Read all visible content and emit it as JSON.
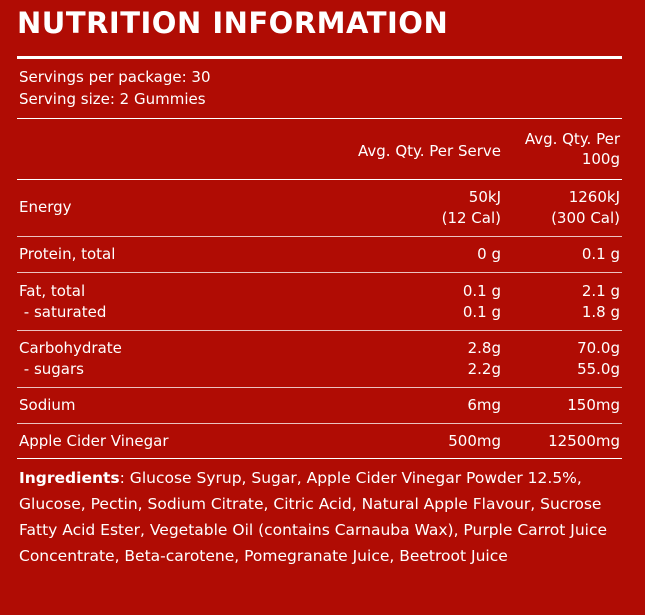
{
  "title": "NUTRITION INFORMATION",
  "servings_per_package": "Servings per package: 30",
  "serving_size": "Serving size: 2 Gummies",
  "headers": {
    "per_serve": "Avg. Qty. Per Serve",
    "per_100g_line1": "Avg. Qty. Per",
    "per_100g_line2": "100g"
  },
  "rows": [
    {
      "label": "Energy",
      "per_serve": [
        "50kJ",
        "(12 Cal)"
      ],
      "per_100g": [
        "1260kJ",
        "(300 Cal)"
      ]
    },
    {
      "label": "Protein, total",
      "per_serve": [
        "0 g"
      ],
      "per_100g": [
        "0.1 g"
      ]
    },
    {
      "label": "Fat, total",
      "sub_label": " - saturated",
      "per_serve": [
        "0.1 g",
        "0.1 g"
      ],
      "per_100g": [
        "2.1 g",
        "1.8 g"
      ]
    },
    {
      "label": "Carbohydrate",
      "sub_label": " - sugars",
      "per_serve": [
        "2.8g",
        "2.2g"
      ],
      "per_100g": [
        "70.0g",
        "55.0g"
      ]
    },
    {
      "label": "Sodium",
      "per_serve": [
        "6mg"
      ],
      "per_100g": [
        "150mg"
      ]
    },
    {
      "label": "Apple Cider Vinegar",
      "per_serve": [
        "500mg"
      ],
      "per_100g": [
        "12500mg"
      ]
    }
  ],
  "ingredients": {
    "heading": "Ingredients",
    "text": ": Glucose Syrup, Sugar, Apple Cider Vinegar Powder 12.5%, Glucose, Pectin, Sodium Citrate, Citric Acid, Natural Apple Flavour, Sucrose Fatty Acid Ester, Vegetable Oil (contains Carnauba Wax), Purple Carrot Juice Concentrate, Beta-carotene, Pomegranate Juice, Beetroot Juice"
  },
  "colors": {
    "background": "#b00c04",
    "text": "#ffffff"
  }
}
